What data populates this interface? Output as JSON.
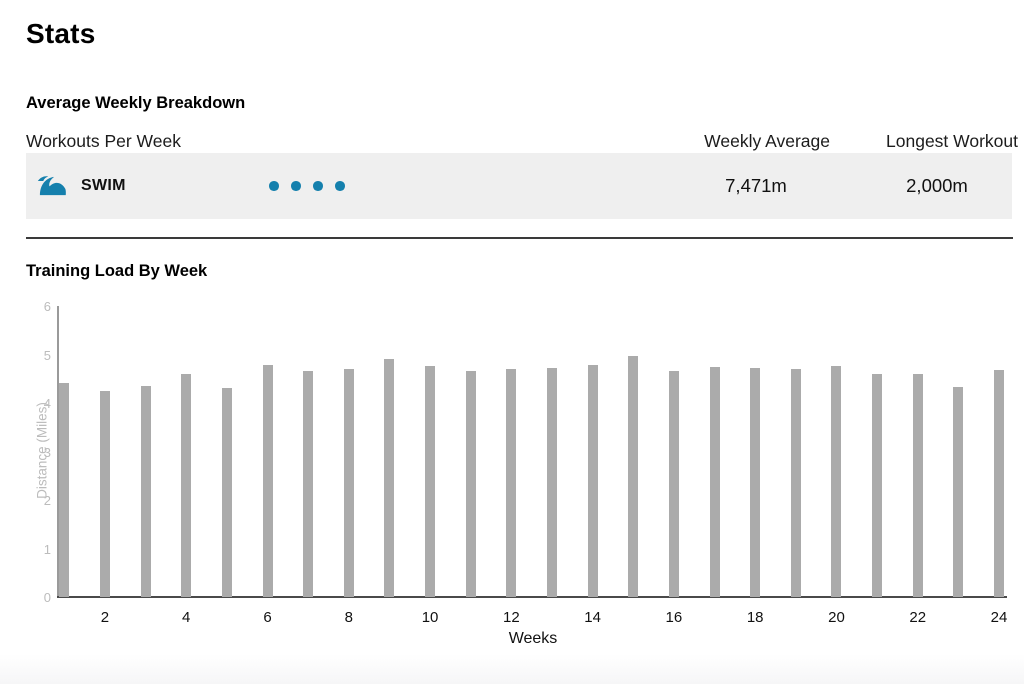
{
  "page": {
    "title": "Stats"
  },
  "colors": {
    "accent_blue": "#1580AD",
    "bar_gray": "#ABABAB",
    "row_bg": "#EFEFEF"
  },
  "breakdown": {
    "section_title": "Average Weekly Breakdown",
    "columns": {
      "workouts": "Workouts Per Week",
      "weekly_average": "Weekly Average",
      "longest_workout": "Longest Workout"
    },
    "rows": [
      {
        "sport": "SWIM",
        "icon": "swim-wave-icon",
        "workouts_per_week": 4,
        "weekly_average": "7,471m",
        "longest_workout": "2,000m"
      }
    ]
  },
  "training_load": {
    "section_title": "Training Load By Week"
  },
  "chart_data": {
    "type": "bar",
    "title": "Training Load By Week",
    "xlabel": "Weeks",
    "ylabel": "Distance (Miles)",
    "x": [
      1,
      2,
      3,
      4,
      5,
      6,
      7,
      8,
      9,
      10,
      11,
      12,
      13,
      14,
      15,
      16,
      17,
      18,
      19,
      20,
      21,
      22,
      23,
      24
    ],
    "values": [
      4.42,
      4.24,
      4.36,
      4.6,
      4.3,
      4.78,
      4.67,
      4.71,
      4.91,
      4.77,
      4.66,
      4.71,
      4.72,
      4.78,
      4.97,
      4.66,
      4.74,
      4.72,
      4.7,
      4.76,
      4.6,
      4.6,
      4.34,
      4.69
    ],
    "ylim": [
      0,
      6
    ],
    "yticks": [
      0,
      1,
      2,
      3,
      4,
      5,
      6
    ],
    "xticks": [
      2,
      4,
      6,
      8,
      10,
      12,
      14,
      16,
      18,
      20,
      22,
      24
    ],
    "grid": false,
    "legend": null,
    "bar_color": "#ABABAB"
  }
}
